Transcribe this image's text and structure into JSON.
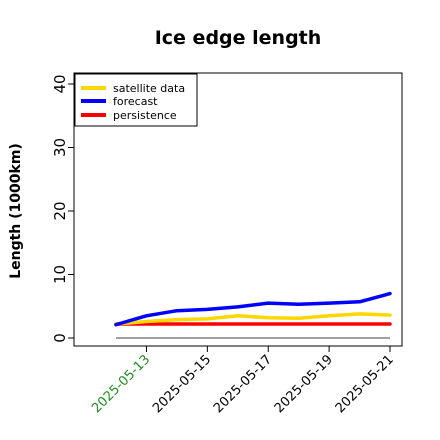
{
  "chart_data": {
    "type": "line",
    "title": "Ice edge length",
    "xlabel": "",
    "ylabel": "Length (1000km)",
    "ylim": [
      -1,
      42
    ],
    "yticks": [
      0,
      10,
      20,
      30,
      40
    ],
    "x": [
      "2025-05-12",
      "2025-05-13",
      "2025-05-14",
      "2025-05-15",
      "2025-05-16",
      "2025-05-17",
      "2025-05-18",
      "2025-05-19",
      "2025-05-20",
      "2025-05-21"
    ],
    "xticks": [
      "2025-05-13",
      "2025-05-15",
      "2025-05-17",
      "2025-05-19",
      "2025-05-21"
    ],
    "xtick_colors": [
      "#228b22",
      "#000000",
      "#000000",
      "#000000",
      "#000000"
    ],
    "series": [
      {
        "name": "satellite data",
        "color": "#ffd700",
        "values": [
          2.2,
          2.6,
          2.9,
          3.0,
          3.5,
          3.2,
          3.1,
          3.5,
          3.8,
          3.6
        ]
      },
      {
        "name": "forecast",
        "color": "#0000ff",
        "values": [
          2.1,
          3.5,
          4.3,
          4.5,
          4.9,
          5.5,
          5.3,
          5.5,
          5.7,
          7.0
        ]
      },
      {
        "name": "persistence",
        "color": "#ff0000",
        "values": [
          2.2,
          2.2,
          2.2,
          2.2,
          2.2,
          2.2,
          2.2,
          2.2,
          2.2,
          2.2
        ]
      }
    ],
    "reference_line": {
      "value": 0,
      "color": "#808080"
    },
    "legend": "top-left",
    "grid": false
  }
}
